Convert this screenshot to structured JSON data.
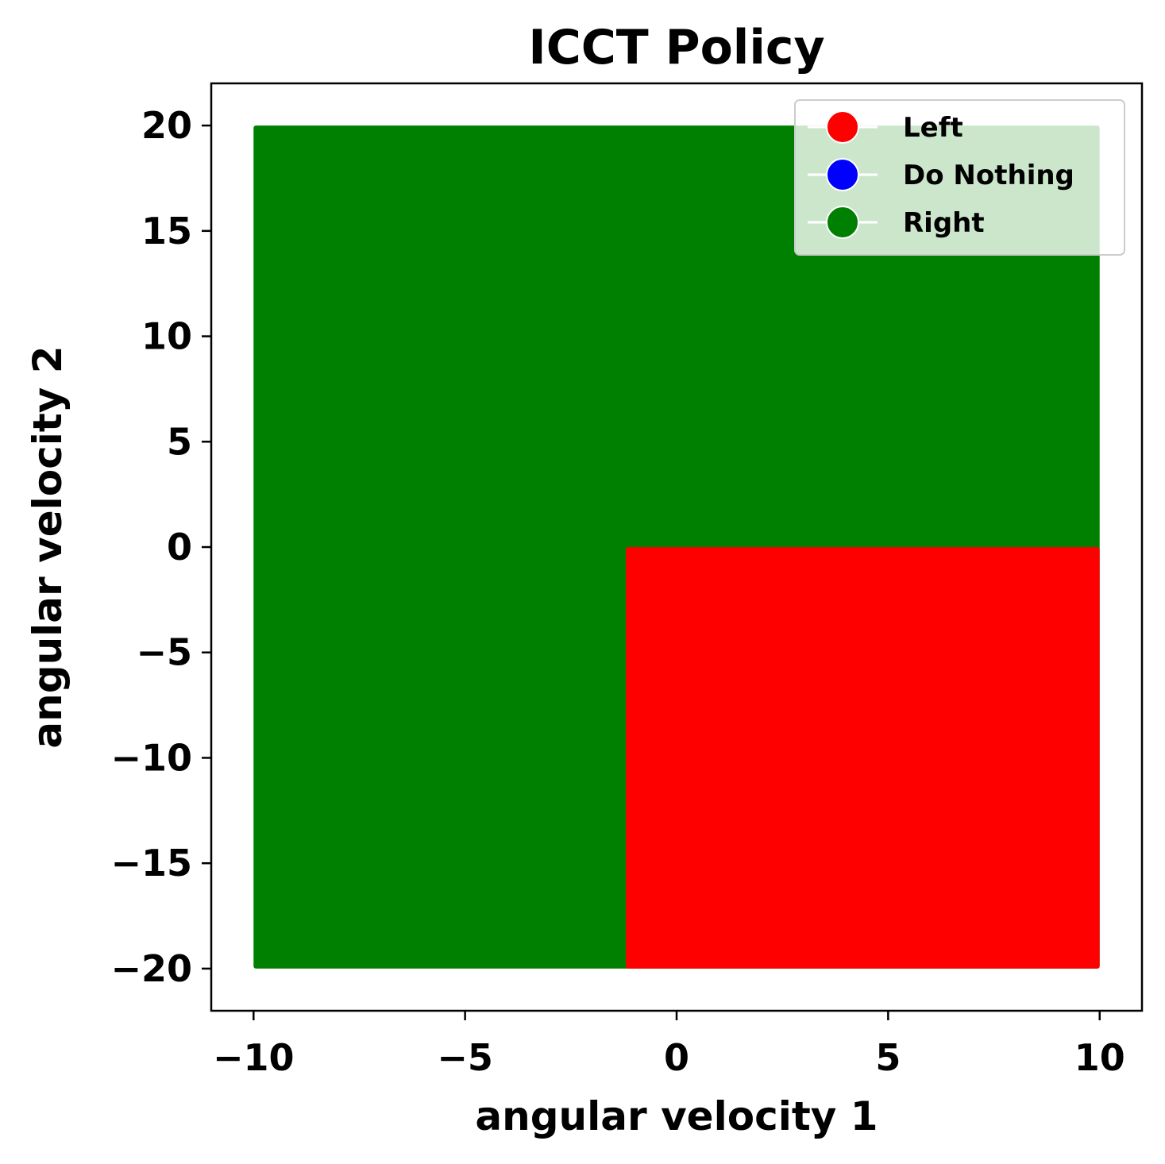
{
  "chart_data": {
    "type": "scatter",
    "title": "ICCT Policy",
    "xlabel": "angular velocity 1",
    "ylabel": "angular velocity 2",
    "xlim": [
      -11,
      11
    ],
    "ylim": [
      -22,
      22
    ],
    "xticks": [
      -10,
      -5,
      0,
      5,
      10
    ],
    "yticks": [
      -20,
      -15,
      -10,
      -5,
      0,
      5,
      10,
      15,
      20
    ],
    "xtick_labels": [
      "−10",
      "−5",
      "0",
      "5",
      "10"
    ],
    "ytick_labels": [
      "−20",
      "−15",
      "−10",
      "−5",
      "0",
      "5",
      "10",
      "15",
      "20"
    ],
    "grid": false,
    "legend_position": "top-right",
    "series": [
      {
        "name": "Left",
        "color": "#ff0000"
      },
      {
        "name": "Do Nothing",
        "color": "#0000ff"
      },
      {
        "name": "Right",
        "color": "#008000"
      }
    ],
    "regions": [
      {
        "action": "Right",
        "color": "#008000",
        "x": [
          -10,
          10
        ],
        "y": [
          -20,
          20
        ]
      },
      {
        "action": "Left",
        "color": "#ff0000",
        "x": [
          -1.2,
          10
        ],
        "y": [
          -20,
          0
        ]
      }
    ]
  }
}
